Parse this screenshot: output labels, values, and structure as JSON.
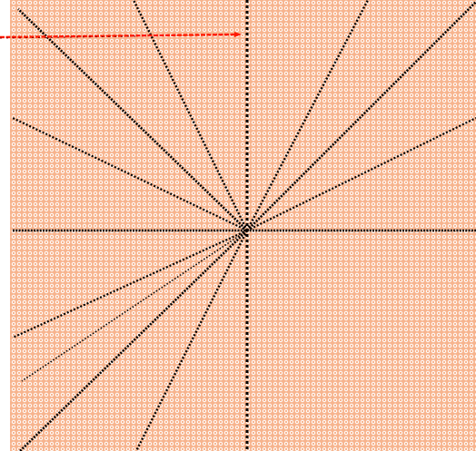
{
  "canvas": {
    "background_color": "#f7b48e",
    "dot_color": "#ffffff",
    "pattern": "dotted"
  },
  "rays": {
    "count": 12,
    "color": "#000000",
    "style": "dotted"
  },
  "pointer": {
    "color": "#ff1a00",
    "direction": "right"
  }
}
